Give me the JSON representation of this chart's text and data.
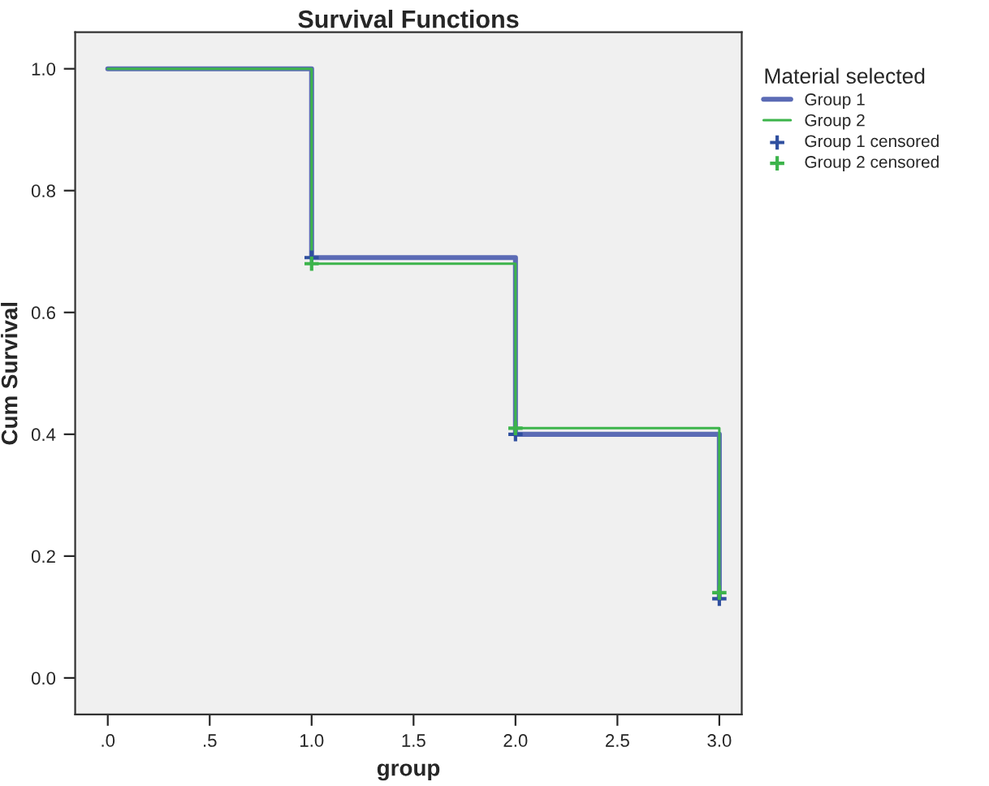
{
  "chart_data": {
    "type": "step",
    "title": "Survival Functions",
    "xlabel": "group",
    "ylabel": "Cum Survival",
    "legend_title": "Material selected",
    "legend": "right",
    "grid": false,
    "xlim": [
      -0.16,
      3.11
    ],
    "ylim": [
      -0.06,
      1.06
    ],
    "xticks": [
      {
        "value": 0,
        "label": ".0"
      },
      {
        "value": 0.5,
        "label": ".5"
      },
      {
        "value": 1,
        "label": "1.0"
      },
      {
        "value": 1.5,
        "label": "1.5"
      },
      {
        "value": 2,
        "label": "2.0"
      },
      {
        "value": 2.5,
        "label": "2.5"
      },
      {
        "value": 3,
        "label": "3.0"
      }
    ],
    "yticks": [
      {
        "value": 0,
        "label": "0.0"
      },
      {
        "value": 0.2,
        "label": "0.2"
      },
      {
        "value": 0.4,
        "label": "0.4"
      },
      {
        "value": 0.6,
        "label": "0.6"
      },
      {
        "value": 0.8,
        "label": "0.8"
      },
      {
        "value": 1,
        "label": "1.0"
      }
    ],
    "series": [
      {
        "name": "Group 1",
        "color": "#5b6bb5",
        "x": [
          0,
          1,
          2,
          3
        ],
        "values": [
          1.0,
          0.69,
          0.4,
          0.13
        ]
      },
      {
        "name": "Group 2",
        "color": "#3cb44b",
        "x": [
          0,
          1,
          2,
          3
        ],
        "values": [
          1.0,
          0.68,
          0.41,
          0.14
        ]
      },
      {
        "name": "Group 1 censored",
        "type": "scatter",
        "marker": "cross",
        "color": "#2f4f9f",
        "x": [
          1,
          2,
          3
        ],
        "values": [
          0.69,
          0.4,
          0.13
        ]
      },
      {
        "name": "Group 2 censored",
        "type": "scatter",
        "marker": "cross",
        "color": "#3cb44b",
        "x": [
          1,
          2,
          3
        ],
        "values": [
          0.68,
          0.41,
          0.14
        ]
      }
    ]
  }
}
